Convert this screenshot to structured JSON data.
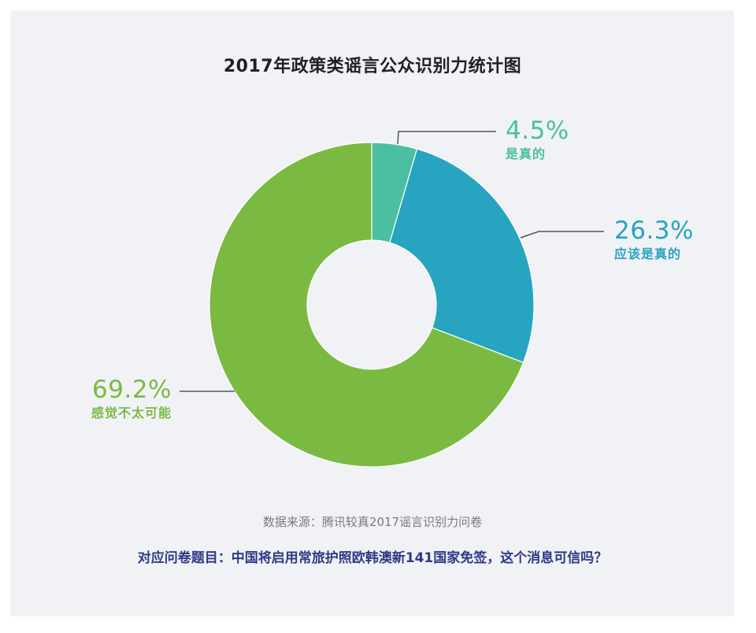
{
  "title": "2017年政策类谣言公众识别力统计图",
  "chart_data": {
    "type": "pie",
    "subtype": "donut",
    "title": "2017年政策类谣言公众识别力统计图",
    "categories": [
      "是真的",
      "应该是真的",
      "感觉不太可能"
    ],
    "values": [
      4.5,
      26.3,
      69.2
    ],
    "unit": "%",
    "labels": [
      "4.5%",
      "26.3%",
      "69.2%"
    ],
    "colors": [
      "#4bbf9f",
      "#27a4c0",
      "#7aba42"
    ],
    "start_angle": "12 o'clock",
    "direction": "clockwise",
    "legend": "none (direct labels with leader lines)"
  },
  "labels": {
    "slice0": {
      "pct": "4.5%",
      "name": "是真的",
      "color": "#4bbf9f"
    },
    "slice1": {
      "pct": "26.3%",
      "name": "应该是真的",
      "color": "#27a4c0"
    },
    "slice2": {
      "pct": "69.2%",
      "name": "感觉不太可能",
      "color": "#7aba42"
    }
  },
  "source": "数据来源：腾讯较真2017谣言识别力问卷",
  "question": "对应问卷题目：中国将启用常旅护照欧韩澳新141国家免签，这个消息可信吗？"
}
